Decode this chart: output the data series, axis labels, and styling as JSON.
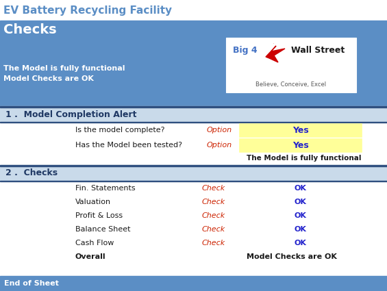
{
  "title_top": "EV Battery Recycling Facility",
  "subtitle_top": "Checks",
  "header_bg": "#5B8EC5",
  "header_text_color": "#FFFFFF",
  "title_color": "#1F3864",
  "title_bg": "#FFFFFF",
  "summary_text": [
    "The Model is fully functional",
    "Model Checks are OK"
  ],
  "summary_text_color": "#FFFFFF",
  "section1_title": "1 .  Model Completion Alert",
  "section1_bg": "#C9DAEA",
  "section2_title": "2 .  Checks",
  "section2_bg": "#C9DAEA",
  "footer_text": "End of Sheet",
  "footer_bg": "#5B8EC5",
  "footer_text_color": "#FFFFFF",
  "q1_label": "Is the model complete?",
  "q2_label": "Has the Model been tested?",
  "option_label": "Option",
  "yes_text": "Yes",
  "yes_bg": "#FFFF99",
  "yes_border": "#1A1A1A",
  "yes_text_color": "#2222CC",
  "functional_text": "The Model is fully functional",
  "functional_text_color": "#1A1A1A",
  "checks": [
    "Fin. Statements",
    "Valuation",
    "Profit & Loss",
    "Balance Sheet",
    "Cash Flow"
  ],
  "check_label": "Check",
  "ok_text": "OK",
  "ok_color": "#2222CC",
  "overall_label": "Overall",
  "overall_result": "Model Checks are OK",
  "overall_color": "#1A1A1A",
  "row_label_color": "#1A1A1A",
  "italic_color": "#CC2200",
  "dark_border": "#1F3864",
  "logo_bg": "#FFFFFF",
  "logo_text1": "Big 4",
  "logo_text2": "Wall Street",
  "logo_text3": "Believe, Conceive, Excel",
  "logo_blue": "#4472C4",
  "logo_dark": "#1A1A1A",
  "logo_bird_color": "#CC0000",
  "section_border": "#2F4F7F"
}
